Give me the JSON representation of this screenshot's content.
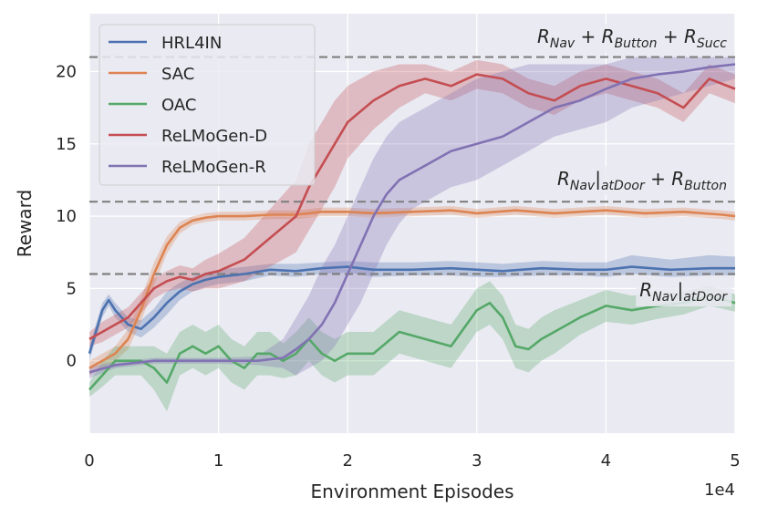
{
  "chart_data": {
    "type": "line",
    "title": "",
    "xlabel": "Environment Episodes",
    "ylabel": "Reward",
    "x_scale_label": "1e4",
    "xlim": [
      0,
      5
    ],
    "ylim": [
      -5,
      24
    ],
    "xticks": [
      0,
      1,
      2,
      3,
      4,
      5
    ],
    "xtick_labels": [
      "0",
      "1",
      "2",
      "3",
      "4",
      "5"
    ],
    "yticks": [
      0,
      5,
      10,
      15,
      20
    ],
    "ytick_labels": [
      "0",
      "5",
      "10",
      "15",
      "20"
    ],
    "grid": true,
    "legend_position": "top-left",
    "background": "#eaeaf2",
    "series": [
      {
        "name": "HRL4IN",
        "color": "#4c72b0",
        "x": [
          0,
          0.05,
          0.1,
          0.15,
          0.2,
          0.3,
          0.4,
          0.5,
          0.6,
          0.7,
          0.8,
          0.9,
          1.0,
          1.2,
          1.4,
          1.6,
          1.8,
          2.0,
          2.2,
          2.5,
          2.8,
          3.0,
          3.2,
          3.5,
          3.8,
          4.0,
          4.2,
          4.5,
          4.8,
          5.0
        ],
        "y": [
          0.5,
          2.0,
          3.5,
          4.2,
          3.5,
          2.5,
          2.2,
          3.0,
          4.0,
          4.8,
          5.3,
          5.6,
          5.8,
          6.0,
          6.3,
          6.2,
          6.4,
          6.5,
          6.3,
          6.3,
          6.4,
          6.3,
          6.2,
          6.4,
          6.3,
          6.3,
          6.5,
          6.3,
          6.4,
          6.4
        ],
        "lower": [
          0.0,
          1.5,
          3.0,
          3.8,
          3.0,
          2.0,
          1.6,
          2.3,
          3.2,
          4.2,
          4.8,
          5.1,
          5.3,
          5.5,
          5.9,
          5.8,
          6.0,
          6.1,
          5.8,
          5.9,
          5.9,
          5.8,
          5.8,
          5.9,
          5.9,
          5.8,
          6.0,
          5.8,
          5.9,
          5.9
        ],
        "upper": [
          1.0,
          2.5,
          4.0,
          4.6,
          4.0,
          3.0,
          2.8,
          3.6,
          4.8,
          5.4,
          5.8,
          6.1,
          6.3,
          6.5,
          6.7,
          6.7,
          6.8,
          6.9,
          6.8,
          6.8,
          6.9,
          6.8,
          6.7,
          6.9,
          6.8,
          6.8,
          7.3,
          7.0,
          7.3,
          7.2
        ]
      },
      {
        "name": "SAC",
        "color": "#dd8452",
        "x": [
          0,
          0.1,
          0.2,
          0.3,
          0.4,
          0.5,
          0.6,
          0.7,
          0.8,
          0.9,
          1.0,
          1.2,
          1.4,
          1.6,
          1.8,
          2.0,
          2.2,
          2.5,
          2.8,
          3.0,
          3.3,
          3.6,
          4.0,
          4.3,
          4.6,
          4.9,
          5.0
        ],
        "y": [
          -0.5,
          0.0,
          0.5,
          1.5,
          3.5,
          6.0,
          8.0,
          9.2,
          9.7,
          9.9,
          10.0,
          10.0,
          10.1,
          10.1,
          10.3,
          10.3,
          10.2,
          10.3,
          10.4,
          10.2,
          10.4,
          10.2,
          10.4,
          10.2,
          10.3,
          10.1,
          10.0
        ],
        "lower": [
          -1.0,
          -0.5,
          0.0,
          0.8,
          2.7,
          5.2,
          7.4,
          8.8,
          9.4,
          9.6,
          9.7,
          9.7,
          9.8,
          9.8,
          10.0,
          10.0,
          9.9,
          10.0,
          10.1,
          9.9,
          10.1,
          9.9,
          10.1,
          9.9,
          10.0,
          9.8,
          9.7
        ],
        "upper": [
          0.0,
          0.5,
          1.0,
          2.2,
          4.3,
          6.8,
          8.6,
          9.6,
          10.0,
          10.2,
          10.3,
          10.3,
          10.4,
          10.4,
          10.6,
          10.6,
          10.5,
          10.6,
          10.7,
          10.5,
          10.7,
          10.5,
          10.7,
          10.5,
          10.6,
          10.4,
          10.3
        ]
      },
      {
        "name": "OAC",
        "color": "#55a868",
        "x": [
          0,
          0.1,
          0.2,
          0.4,
          0.5,
          0.6,
          0.7,
          0.8,
          0.9,
          1.0,
          1.1,
          1.2,
          1.3,
          1.4,
          1.5,
          1.6,
          1.7,
          1.8,
          1.9,
          2.0,
          2.2,
          2.4,
          2.6,
          2.8,
          3.0,
          3.1,
          3.2,
          3.3,
          3.4,
          3.5,
          3.6,
          3.8,
          4.0,
          4.2,
          4.4,
          4.6,
          4.8,
          5.0
        ],
        "y": [
          -2.0,
          -1.0,
          0.0,
          0.0,
          -0.5,
          -1.5,
          0.5,
          1.0,
          0.5,
          1.0,
          0.0,
          -0.5,
          0.5,
          0.5,
          0.0,
          0.5,
          1.5,
          0.5,
          0.0,
          0.5,
          0.5,
          2.0,
          1.5,
          1.0,
          3.5,
          4.0,
          3.0,
          1.0,
          0.8,
          1.5,
          2.0,
          3.0,
          3.8,
          3.5,
          3.8,
          4.0,
          4.5,
          4.0
        ],
        "lower": [
          -2.5,
          -1.8,
          -1.0,
          -1.0,
          -2.0,
          -3.5,
          -1.0,
          -0.5,
          -1.0,
          -0.5,
          -1.5,
          -2.0,
          -1.0,
          -1.0,
          -1.2,
          -1.0,
          0.0,
          -1.0,
          -1.5,
          -1.0,
          -1.0,
          0.5,
          0.0,
          -0.5,
          2.0,
          2.5,
          1.5,
          -0.5,
          -0.8,
          0.0,
          0.5,
          1.8,
          2.7,
          2.5,
          2.9,
          3.2,
          3.8,
          3.4
        ],
        "upper": [
          -1.5,
          0.0,
          1.0,
          1.0,
          1.0,
          0.5,
          2.0,
          2.5,
          2.0,
          2.5,
          1.5,
          1.0,
          2.0,
          2.0,
          1.2,
          2.0,
          3.0,
          2.0,
          1.5,
          2.0,
          2.0,
          3.5,
          3.0,
          2.5,
          5.0,
          5.5,
          4.5,
          2.5,
          2.2,
          3.0,
          3.5,
          4.2,
          4.9,
          4.5,
          4.7,
          4.8,
          5.2,
          4.6
        ]
      },
      {
        "name": "ReLMoGen-D",
        "color": "#c44e52",
        "x": [
          0,
          0.1,
          0.2,
          0.3,
          0.4,
          0.5,
          0.6,
          0.7,
          0.8,
          0.9,
          1.0,
          1.2,
          1.4,
          1.6,
          1.7,
          1.8,
          1.9,
          2.0,
          2.2,
          2.4,
          2.6,
          2.8,
          3.0,
          3.2,
          3.4,
          3.6,
          3.8,
          4.0,
          4.2,
          4.4,
          4.6,
          4.8,
          5.0
        ],
        "y": [
          1.5,
          2.0,
          2.5,
          3.0,
          4.0,
          5.0,
          5.5,
          5.8,
          5.6,
          6.0,
          6.2,
          7.0,
          8.5,
          10.0,
          12.0,
          13.5,
          15.0,
          16.5,
          18.0,
          19.0,
          19.5,
          19.0,
          19.8,
          19.5,
          18.5,
          18.0,
          19.0,
          19.5,
          19.0,
          18.5,
          17.5,
          19.5,
          18.8
        ],
        "lower": [
          1.0,
          1.3,
          1.8,
          2.3,
          3.3,
          4.3,
          4.8,
          5.0,
          4.8,
          5.0,
          5.0,
          5.5,
          6.5,
          7.5,
          9.0,
          10.5,
          12.0,
          14.0,
          16.0,
          17.5,
          18.5,
          18.0,
          18.8,
          18.5,
          17.5,
          17.0,
          18.0,
          18.5,
          18.0,
          17.5,
          16.5,
          18.5,
          17.8
        ],
        "upper": [
          2.0,
          2.7,
          3.2,
          3.7,
          4.7,
          5.7,
          6.2,
          6.6,
          6.4,
          7.0,
          7.4,
          8.5,
          10.5,
          12.5,
          15.0,
          16.5,
          18.0,
          19.0,
          20.0,
          20.5,
          20.5,
          20.0,
          20.8,
          20.5,
          19.5,
          19.0,
          20.0,
          20.5,
          20.0,
          19.5,
          18.5,
          20.5,
          19.8
        ]
      },
      {
        "name": "ReLMoGen-R",
        "color": "#8172b3",
        "x": [
          0,
          0.2,
          0.5,
          1.0,
          1.3,
          1.5,
          1.6,
          1.7,
          1.8,
          1.9,
          2.0,
          2.1,
          2.2,
          2.3,
          2.4,
          2.5,
          2.6,
          2.8,
          3.0,
          3.2,
          3.4,
          3.6,
          3.8,
          4.0,
          4.2,
          4.4,
          4.6,
          4.8,
          5.0
        ],
        "y": [
          -0.8,
          -0.3,
          0.0,
          0.0,
          0.0,
          0.2,
          0.8,
          1.5,
          2.5,
          4.0,
          6.0,
          8.0,
          10.0,
          11.5,
          12.5,
          13.0,
          13.5,
          14.5,
          15.0,
          15.5,
          16.5,
          17.5,
          18.0,
          18.8,
          19.5,
          19.8,
          20.0,
          20.3,
          20.5
        ],
        "lower": [
          -1.2,
          -0.5,
          -0.2,
          -0.2,
          -0.3,
          -0.5,
          -1.0,
          -0.5,
          0.0,
          1.0,
          2.5,
          4.0,
          6.0,
          8.0,
          9.5,
          10.5,
          11.0,
          12.0,
          12.5,
          13.5,
          14.5,
          15.5,
          16.0,
          16.5,
          17.5,
          18.0,
          18.5,
          19.0,
          19.5
        ],
        "upper": [
          -0.4,
          -0.1,
          0.2,
          0.2,
          0.3,
          1.5,
          3.0,
          4.5,
          6.5,
          8.0,
          10.0,
          12.0,
          14.0,
          15.5,
          16.5,
          17.0,
          17.5,
          18.5,
          19.5,
          20.0,
          20.5,
          20.5,
          20.5,
          20.5,
          21.0,
          21.0,
          21.0,
          21.0,
          21.0
        ]
      }
    ],
    "reference_lines": [
      {
        "y": 21,
        "label_main": "R",
        "label_parts": [
          {
            "t": "R"
          },
          {
            "t": "Nav",
            "sub": true
          },
          {
            "t": " + R"
          },
          {
            "t": "Button",
            "sub": true
          },
          {
            "t": " + R"
          },
          {
            "t": "Succ",
            "sub": true
          }
        ]
      },
      {
        "y": 11,
        "label_main": "R",
        "label_parts": [
          {
            "t": "R"
          },
          {
            "t": "Nav",
            "sub": true
          },
          {
            "t": "|"
          },
          {
            "t": "atDoor",
            "sub": true
          },
          {
            "t": " + R"
          },
          {
            "t": "Button",
            "sub": true
          }
        ]
      },
      {
        "y": 6,
        "label_main": "R",
        "label_parts": [
          {
            "t": "R"
          },
          {
            "t": "Nav",
            "sub": true
          },
          {
            "t": "|"
          },
          {
            "t": "atDoor",
            "sub": true
          }
        ]
      }
    ]
  }
}
